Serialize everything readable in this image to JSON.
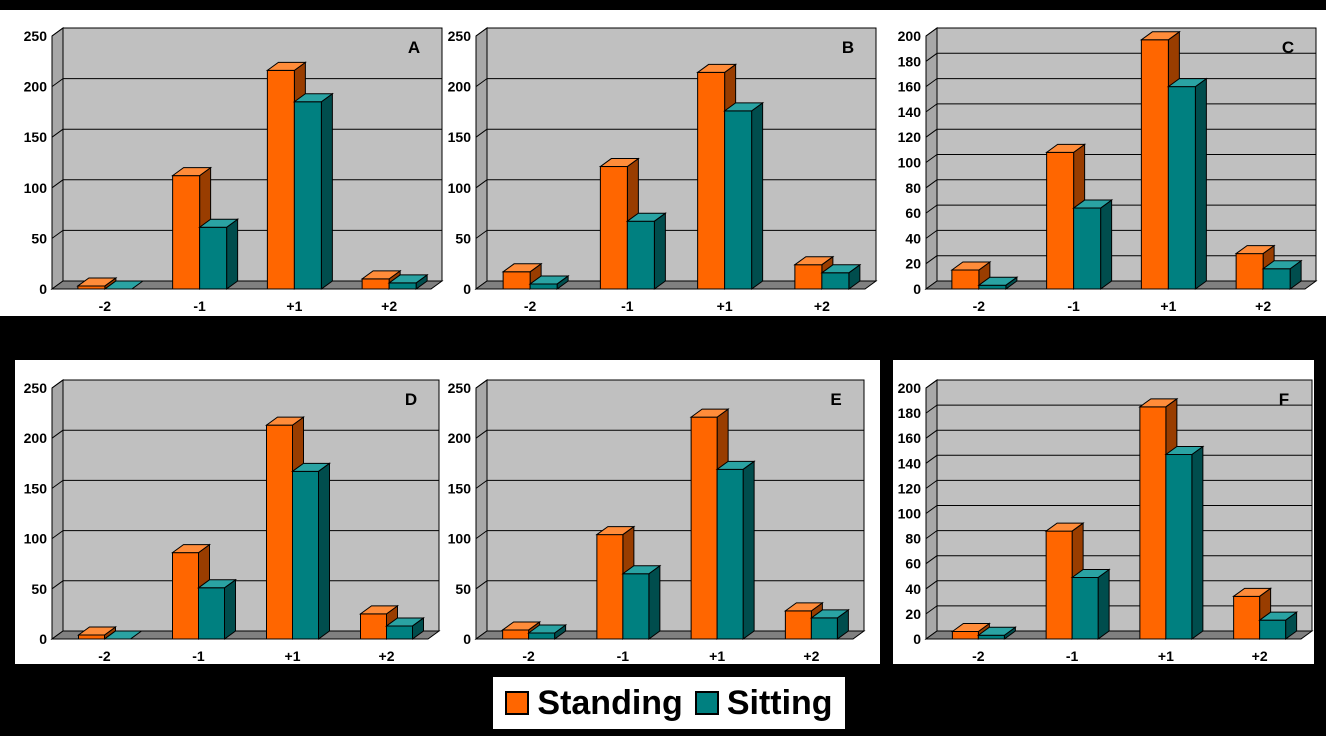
{
  "colors": {
    "standing": "#ff6600",
    "standing_top": "#ff8c3a",
    "standing_side": "#993d00",
    "sitting": "#008080",
    "sitting_top": "#2aa3a3",
    "sitting_side": "#004d4d",
    "plot_bg": "#c0c0c0",
    "floor": "#808080"
  },
  "legend": [
    {
      "name": "Standing",
      "color": "#ff6600"
    },
    {
      "name": "Sitting",
      "color": "#008080"
    }
  ],
  "chart_data": [
    {
      "type": "bar",
      "label": "A",
      "categories": [
        "-2",
        "-1",
        "+1",
        "+2"
      ],
      "ylim": [
        0,
        250
      ],
      "yticks": [
        0,
        50,
        100,
        150,
        200,
        250
      ],
      "series": [
        {
          "name": "Standing",
          "values": [
            3,
            112,
            216,
            10
          ]
        },
        {
          "name": "Sitting",
          "values": [
            0,
            61,
            185,
            6
          ]
        }
      ]
    },
    {
      "type": "bar",
      "label": "B",
      "categories": [
        "-2",
        "-1",
        "+1",
        "+2"
      ],
      "ylim": [
        0,
        250
      ],
      "yticks": [
        0,
        50,
        100,
        150,
        200,
        250
      ],
      "series": [
        {
          "name": "Standing",
          "values": [
            17,
            121,
            214,
            24
          ]
        },
        {
          "name": "Sitting",
          "values": [
            5,
            67,
            176,
            16
          ]
        }
      ]
    },
    {
      "type": "bar",
      "label": "C",
      "categories": [
        "-2",
        "-1",
        "+1",
        "+2"
      ],
      "ylim": [
        0,
        200
      ],
      "yticks": [
        0,
        20,
        40,
        60,
        80,
        100,
        120,
        140,
        160,
        180,
        200
      ],
      "series": [
        {
          "name": "Standing",
          "values": [
            15,
            108,
            197,
            28
          ]
        },
        {
          "name": "Sitting",
          "values": [
            3,
            64,
            160,
            16
          ]
        }
      ]
    },
    {
      "type": "bar",
      "label": "D",
      "categories": [
        "-2",
        "-1",
        "+1",
        "+2"
      ],
      "ylim": [
        0,
        250
      ],
      "yticks": [
        0,
        50,
        100,
        150,
        200,
        250
      ],
      "series": [
        {
          "name": "Standing",
          "values": [
            4,
            86,
            213,
            25
          ]
        },
        {
          "name": "Sitting",
          "values": [
            0,
            51,
            167,
            13
          ]
        }
      ]
    },
    {
      "type": "bar",
      "label": "E",
      "categories": [
        "-2",
        "-1",
        "+1",
        "+2"
      ],
      "ylim": [
        0,
        250
      ],
      "yticks": [
        0,
        50,
        100,
        150,
        200,
        250
      ],
      "series": [
        {
          "name": "Standing",
          "values": [
            9,
            104,
            221,
            28
          ]
        },
        {
          "name": "Sitting",
          "values": [
            6,
            65,
            169,
            21
          ]
        }
      ]
    },
    {
      "type": "bar",
      "label": "F",
      "categories": [
        "-2",
        "-1",
        "+1",
        "+2"
      ],
      "ylim": [
        0,
        200
      ],
      "yticks": [
        0,
        20,
        40,
        60,
        80,
        100,
        120,
        140,
        160,
        180,
        200
      ],
      "series": [
        {
          "name": "Standing",
          "values": [
            6,
            86,
            185,
            34
          ]
        },
        {
          "name": "Sitting",
          "values": [
            3,
            49,
            147,
            15
          ]
        }
      ]
    }
  ]
}
